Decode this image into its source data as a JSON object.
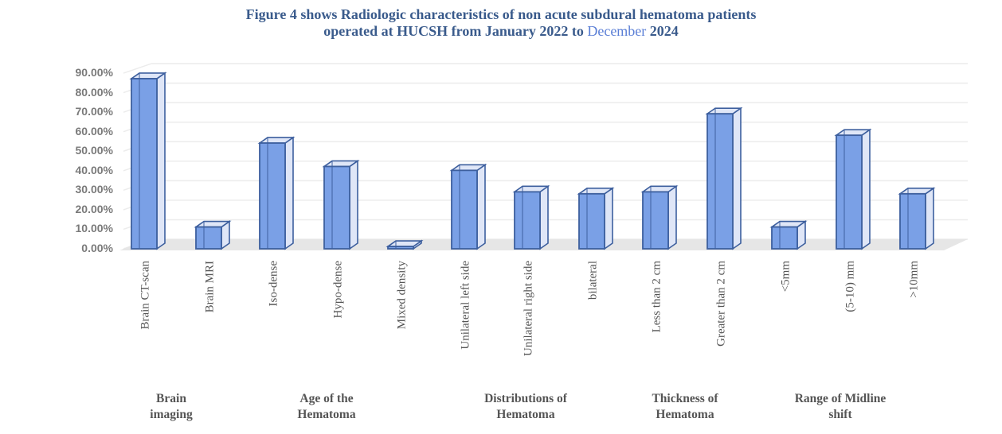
{
  "title": {
    "line1": "Figure 4 shows Radiologic characteristics of non acute subdural hematoma patients",
    "line2_prefix": "operated at HUCSH from January 2022 to ",
    "line2_highlight": "December",
    "line2_suffix": " 2024"
  },
  "y_ticks": [
    "90.00%",
    "80.00%",
    "70.00%",
    "60.00%",
    "50.00%",
    "40.00%",
    "30.00%",
    "20.00%",
    "10.00%",
    "0.00%"
  ],
  "groups": [
    {
      "label_line1": "Brain",
      "label_line2": "imaging"
    },
    {
      "label_line1": "Age of the",
      "label_line2": "Hematoma"
    },
    {
      "label_line1": "Distributions of",
      "label_line2": "Hematoma"
    },
    {
      "label_line1": "Thickness of",
      "label_line2": "Hematoma"
    },
    {
      "label_line1": "Range of Midline",
      "label_line2": "shift"
    }
  ],
  "colors": {
    "bar_front": "#7aa0e6",
    "bar_edge": "#3d5f9e",
    "bar_side": "#dfe6f7",
    "floor": "#e6e6e6",
    "grid": "#ececec",
    "title": "#3a5b8c"
  },
  "chart_data": {
    "type": "bar",
    "style": "3d-column",
    "title": "Figure 4 shows Radiologic characteristics of non acute subdural hematoma patients operated at HUCSH from January 2022 to December 2024",
    "xlabel": "",
    "ylabel": "",
    "ylim": [
      0,
      0.9
    ],
    "yticks": [
      0,
      0.1,
      0.2,
      0.3,
      0.4,
      0.5,
      0.6,
      0.7,
      0.8,
      0.9
    ],
    "ytick_format": "percent_2dp",
    "grid": true,
    "legend": null,
    "categories": [
      "Brain CT-scan",
      "Brain MRI",
      "Iso-dense",
      "Hypo-dense",
      "Mixed density",
      "Unilateral left side",
      "Unilateral right side",
      "bilateral",
      "Less than 2 cm",
      "Greater than 2 cm",
      "<5mm",
      "(5-10) mm",
      ">10mm"
    ],
    "values": [
      0.88,
      0.12,
      0.55,
      0.43,
      0.02,
      0.41,
      0.3,
      0.29,
      0.3,
      0.7,
      0.12,
      0.59,
      0.29
    ],
    "category_groups": [
      {
        "name": "Brain imaging",
        "categories": [
          "Brain CT-scan",
          "Brain MRI"
        ]
      },
      {
        "name": "Age of the Hematoma",
        "categories": [
          "Iso-dense",
          "Hypo-dense",
          "Mixed density"
        ]
      },
      {
        "name": "Distributions of Hematoma",
        "categories": [
          "Unilateral left side",
          "Unilateral right side",
          "bilateral"
        ]
      },
      {
        "name": "Thickness of Hematoma",
        "categories": [
          "Less than 2 cm",
          "Greater than 2 cm"
        ]
      },
      {
        "name": "Range of Midline shift",
        "categories": [
          "<5mm",
          "(5-10) mm",
          ">10mm"
        ]
      }
    ]
  }
}
